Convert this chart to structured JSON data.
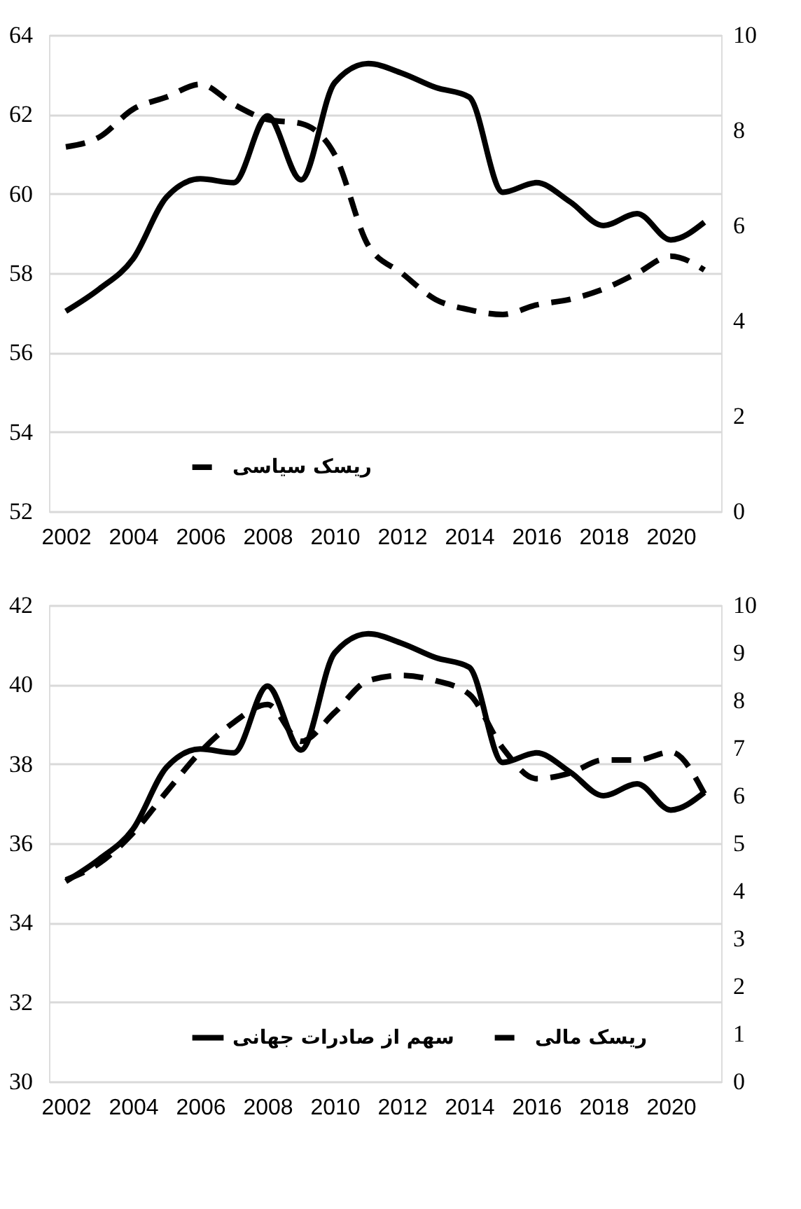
{
  "chart_data": [
    {
      "type": "line",
      "x": [
        2002,
        2003,
        2004,
        2005,
        2006,
        2007,
        2008,
        2009,
        2010,
        2011,
        2012,
        2013,
        2014,
        2015,
        2016,
        2017,
        2018,
        2019,
        2020,
        2021
      ],
      "xlim": [
        2001.5,
        2021.5
      ],
      "xticks": [
        2002,
        2004,
        2006,
        2008,
        2010,
        2012,
        2014,
        2016,
        2018,
        2020
      ],
      "ylim": [
        52,
        64
      ],
      "yticks": [
        52,
        54,
        56,
        58,
        60,
        62,
        64
      ],
      "y2lim": [
        0,
        10
      ],
      "y2ticks": [
        0,
        2,
        4,
        6,
        8,
        10
      ],
      "grid": "y",
      "legend": "bottom",
      "series": [
        {
          "color": "#000000",
          "axis": "y2",
          "line_style": "solid",
          "values": [
            4.2,
            4.67,
            5.3,
            6.6,
            6.98,
            6.9,
            8.3,
            6.96,
            9.0,
            9.4,
            9.2,
            8.9,
            8.7,
            6.7,
            6.9,
            6.5,
            6.0,
            6.25,
            5.7,
            6.07
          ]
        },
        {
          "name": "ریسک سیاسی",
          "color": "#000000",
          "axis": "y",
          "line_style": "dashed",
          "values": [
            61.18,
            61.43,
            62.13,
            62.44,
            62.76,
            62.25,
            61.87,
            61.77,
            60.99,
            58.7,
            58.0,
            57.34,
            57.08,
            56.96,
            57.2,
            57.34,
            57.6,
            58.0,
            58.43,
            58.08
          ]
        }
      ]
    },
    {
      "type": "line",
      "x": [
        2002,
        2003,
        2004,
        2005,
        2006,
        2007,
        2008,
        2009,
        2010,
        2011,
        2012,
        2013,
        2014,
        2015,
        2016,
        2017,
        2018,
        2019,
        2020,
        2021
      ],
      "xlim": [
        2001.5,
        2021.5
      ],
      "xticks": [
        2002,
        2004,
        2006,
        2008,
        2010,
        2012,
        2014,
        2016,
        2018,
        2020
      ],
      "ylim": [
        30,
        42
      ],
      "yticks": [
        30,
        32,
        34,
        36,
        38,
        40,
        42
      ],
      "y2lim": [
        0,
        10
      ],
      "y2ticks": [
        0,
        1,
        2,
        3,
        4,
        5,
        6,
        7,
        8,
        9,
        10
      ],
      "grid": "y",
      "legend": "bottom",
      "series": [
        {
          "name": "سهم از صادرات جهانی",
          "color": "#000000",
          "axis": "y2",
          "line_style": "solid",
          "values": [
            4.2,
            4.67,
            5.3,
            6.6,
            6.98,
            6.9,
            8.3,
            6.96,
            9.0,
            9.4,
            9.2,
            8.9,
            8.7,
            6.7,
            6.9,
            6.5,
            6.0,
            6.25,
            5.7,
            6.07
          ]
        },
        {
          "name": "ریسک مالی",
          "color": "#000000",
          "axis": "y",
          "line_style": "dashed",
          "values": [
            35.08,
            35.5,
            36.26,
            37.3,
            38.3,
            39.05,
            39.5,
            38.57,
            39.3,
            40.1,
            40.23,
            40.1,
            39.76,
            38.4,
            37.63,
            37.77,
            38.1,
            38.1,
            38.3,
            37.25
          ]
        }
      ]
    }
  ]
}
